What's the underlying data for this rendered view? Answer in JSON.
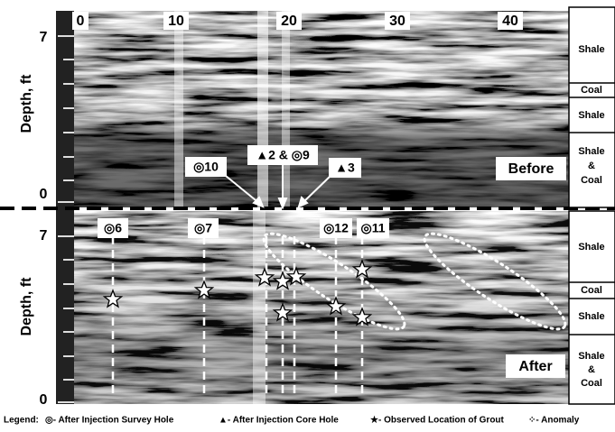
{
  "axis": {
    "x_labels": [
      "0",
      "10",
      "20",
      "30",
      "40"
    ],
    "y_label": "Depth, ft"
  },
  "panels": [
    {
      "name": "Before",
      "y_labels": [
        "7",
        "0"
      ],
      "strata": [
        [
          "Shale"
        ],
        [
          "Coal"
        ],
        [
          "Shale"
        ],
        [
          "Shale",
          "&",
          "Coal"
        ]
      ],
      "holes": [
        "◎10",
        "▲2 & ◎9",
        "▲3"
      ]
    },
    {
      "name": "After",
      "y_labels": [
        "7",
        "0"
      ],
      "strata": [
        [
          "Shale"
        ],
        [
          "Coal"
        ],
        [
          "Shale"
        ],
        [
          "Shale",
          "&",
          "Coal"
        ]
      ],
      "holes": [
        "◎6",
        "◎7",
        "◎12",
        "◎11"
      ]
    }
  ],
  "legend": {
    "title": "Legend:",
    "items": [
      "◎- After Injection Survey Hole",
      "▲- After Injection Core Hole",
      "★- Observed Location of Grout",
      "⁘- Anomaly"
    ]
  }
}
